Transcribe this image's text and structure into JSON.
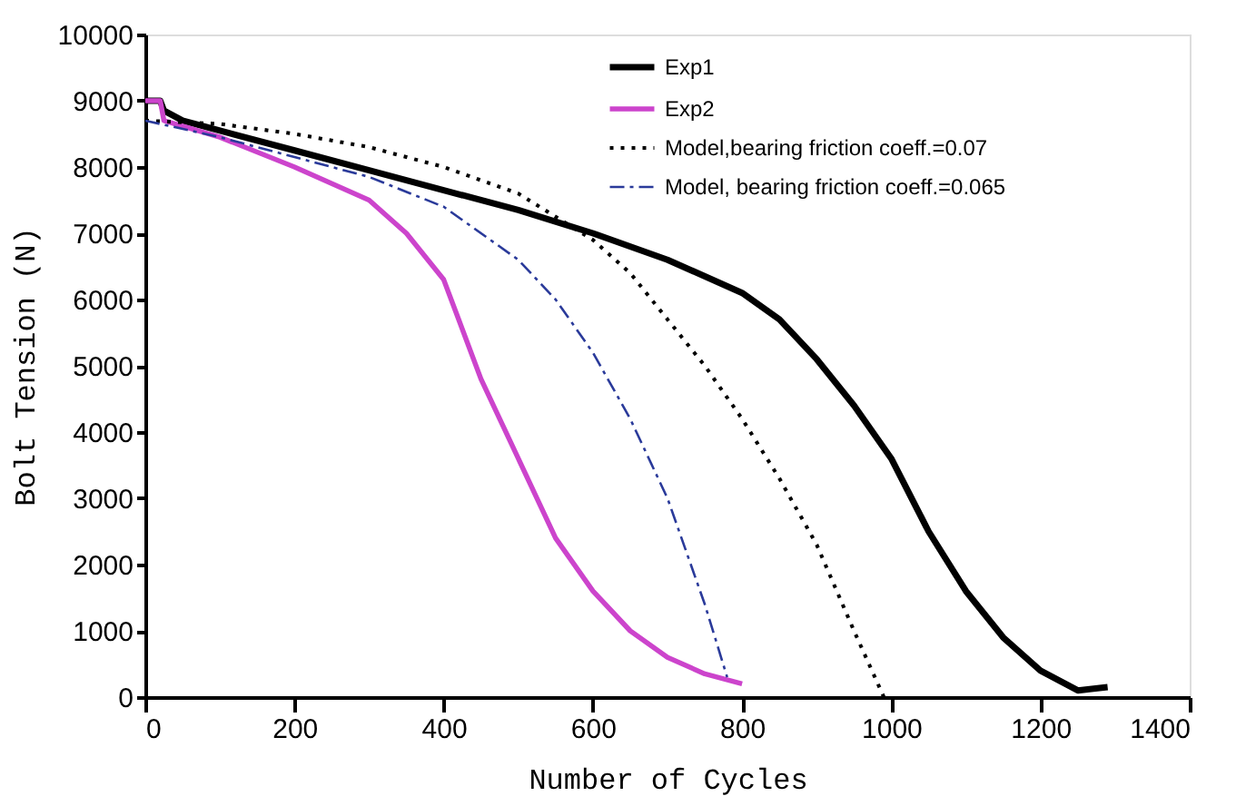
{
  "chart_data": {
    "type": "line",
    "xlabel": "Number of Cycles",
    "ylabel": "Bolt Tension (N)",
    "xlim": [
      0,
      1400
    ],
    "ylim": [
      0,
      10000
    ],
    "xticks": [
      0,
      200,
      400,
      600,
      800,
      1000,
      1200,
      1400
    ],
    "yticks": [
      0,
      1000,
      2000,
      3000,
      4000,
      5000,
      6000,
      7000,
      8000,
      9000,
      10000
    ],
    "grid": false,
    "legend": "top right",
    "marker": "none",
    "series": [
      {
        "name": "Exp1",
        "color": "#000000",
        "line_style": "solid",
        "x": [
          0,
          20,
          25,
          50,
          100,
          200,
          300,
          400,
          500,
          600,
          700,
          800,
          850,
          900,
          950,
          1000,
          1050,
          1100,
          1150,
          1200,
          1250,
          1290
        ],
        "values": [
          9000,
          9000,
          8850,
          8700,
          8550,
          8250,
          7950,
          7650,
          7350,
          7000,
          6600,
          6100,
          5700,
          5100,
          4400,
          3600,
          2500,
          1600,
          900,
          400,
          100,
          150
        ]
      },
      {
        "name": "Exp2",
        "color": "#cc44cc",
        "line_style": "solid",
        "x": [
          0,
          20,
          25,
          100,
          200,
          300,
          350,
          400,
          450,
          500,
          550,
          600,
          650,
          700,
          750,
          800
        ],
        "values": [
          9000,
          9000,
          8700,
          8450,
          8000,
          7500,
          7000,
          6300,
          4800,
          3600,
          2400,
          1600,
          1000,
          600,
          350,
          200
        ]
      },
      {
        "name": "Model,bearing friction coeff.=0.07",
        "color": "#000000",
        "line_style": "dotted",
        "x": [
          0,
          100,
          200,
          300,
          400,
          500,
          600,
          650,
          700,
          750,
          800,
          850,
          900,
          950,
          990
        ],
        "values": [
          8700,
          8650,
          8500,
          8300,
          8000,
          7600,
          6900,
          6400,
          5700,
          5000,
          4200,
          3300,
          2300,
          1000,
          0
        ]
      },
      {
        "name": "Model, bearing friction coeff.=0.065",
        "color": "#2a3a9a",
        "line_style": "dashdot",
        "x": [
          0,
          100,
          200,
          300,
          400,
          500,
          550,
          600,
          650,
          700,
          750,
          780
        ],
        "values": [
          8700,
          8450,
          8150,
          7850,
          7400,
          6600,
          6000,
          5200,
          4200,
          3000,
          1400,
          300
        ]
      }
    ]
  }
}
